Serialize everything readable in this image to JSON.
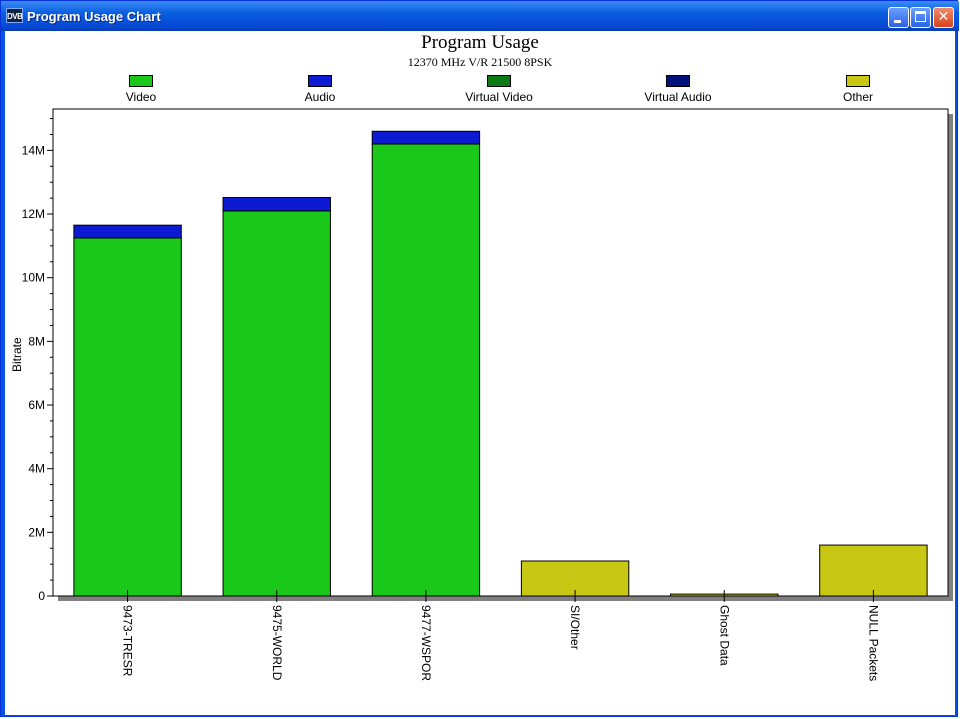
{
  "window": {
    "title": "Program Usage Chart",
    "icon_text": "DVB",
    "buttons": [
      "minimize-icon",
      "maximize-icon",
      "close-icon"
    ]
  },
  "chart_data": {
    "type": "bar",
    "stacked": true,
    "title": "Program Usage",
    "subtitle": "12370 MHz V/R 21500 8PSK",
    "xlabel": "",
    "ylabel": "Bitrate",
    "ylim": [
      0,
      15300000
    ],
    "yticks": [
      0,
      2000000,
      4000000,
      6000000,
      8000000,
      10000000,
      12000000,
      14000000
    ],
    "ytick_labels": [
      "0",
      "2M",
      "4M",
      "6M",
      "8M",
      "10M",
      "12M",
      "14M"
    ],
    "grid": false,
    "legend_position": "top",
    "categories": [
      "9473-TRESR",
      "9475-WORLD",
      "9477-WSPOR",
      "SI/Other",
      "Ghost Data",
      "NULL Packets"
    ],
    "series": [
      {
        "name": "Video",
        "color": "#19c819",
        "values": [
          11250000,
          12100000,
          14200000,
          0,
          0,
          0
        ]
      },
      {
        "name": "Audio",
        "color": "#0c1ad2",
        "values": [
          400000,
          420000,
          400000,
          0,
          0,
          0
        ]
      },
      {
        "name": "Virtual Video",
        "color": "#0a7a14",
        "values": [
          0,
          0,
          0,
          0,
          0,
          0
        ]
      },
      {
        "name": "Virtual Audio",
        "color": "#00127a",
        "values": [
          0,
          0,
          0,
          0,
          0,
          0
        ]
      },
      {
        "name": "Other",
        "color": "#c8c814",
        "values": [
          0,
          0,
          0,
          1100000,
          60000,
          1600000
        ]
      }
    ]
  }
}
